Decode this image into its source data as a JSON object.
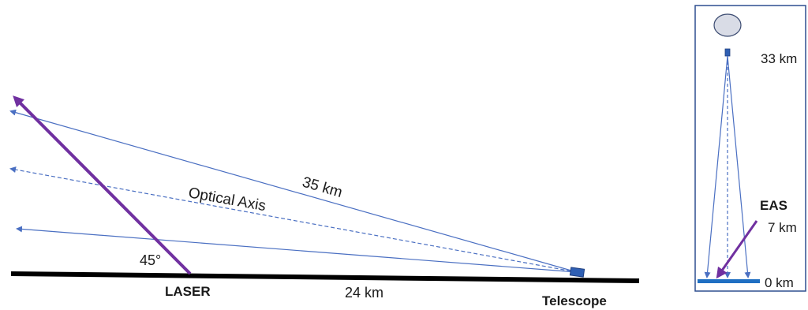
{
  "left_diagram": {
    "angle_label": "45°",
    "laser_label": "LASER",
    "ground_distance_label": "24 km",
    "telescope_label": "Telescope",
    "slant_distance_label": "35 km",
    "optical_axis_label": "Optical Axis"
  },
  "right_diagram": {
    "altitude_top_label": "33 km",
    "eas_label": "EAS",
    "eas_altitude_label": "7 km",
    "ground_label": "0 km"
  },
  "colors": {
    "ray": "#4a6fc2",
    "laser": "#7030a0",
    "ground": "#000000",
    "ground_strip": "#1f6fc2",
    "telescope": "#2f5fb3",
    "balloon": "#d9dce6",
    "frame": "#2f4f8f"
  }
}
